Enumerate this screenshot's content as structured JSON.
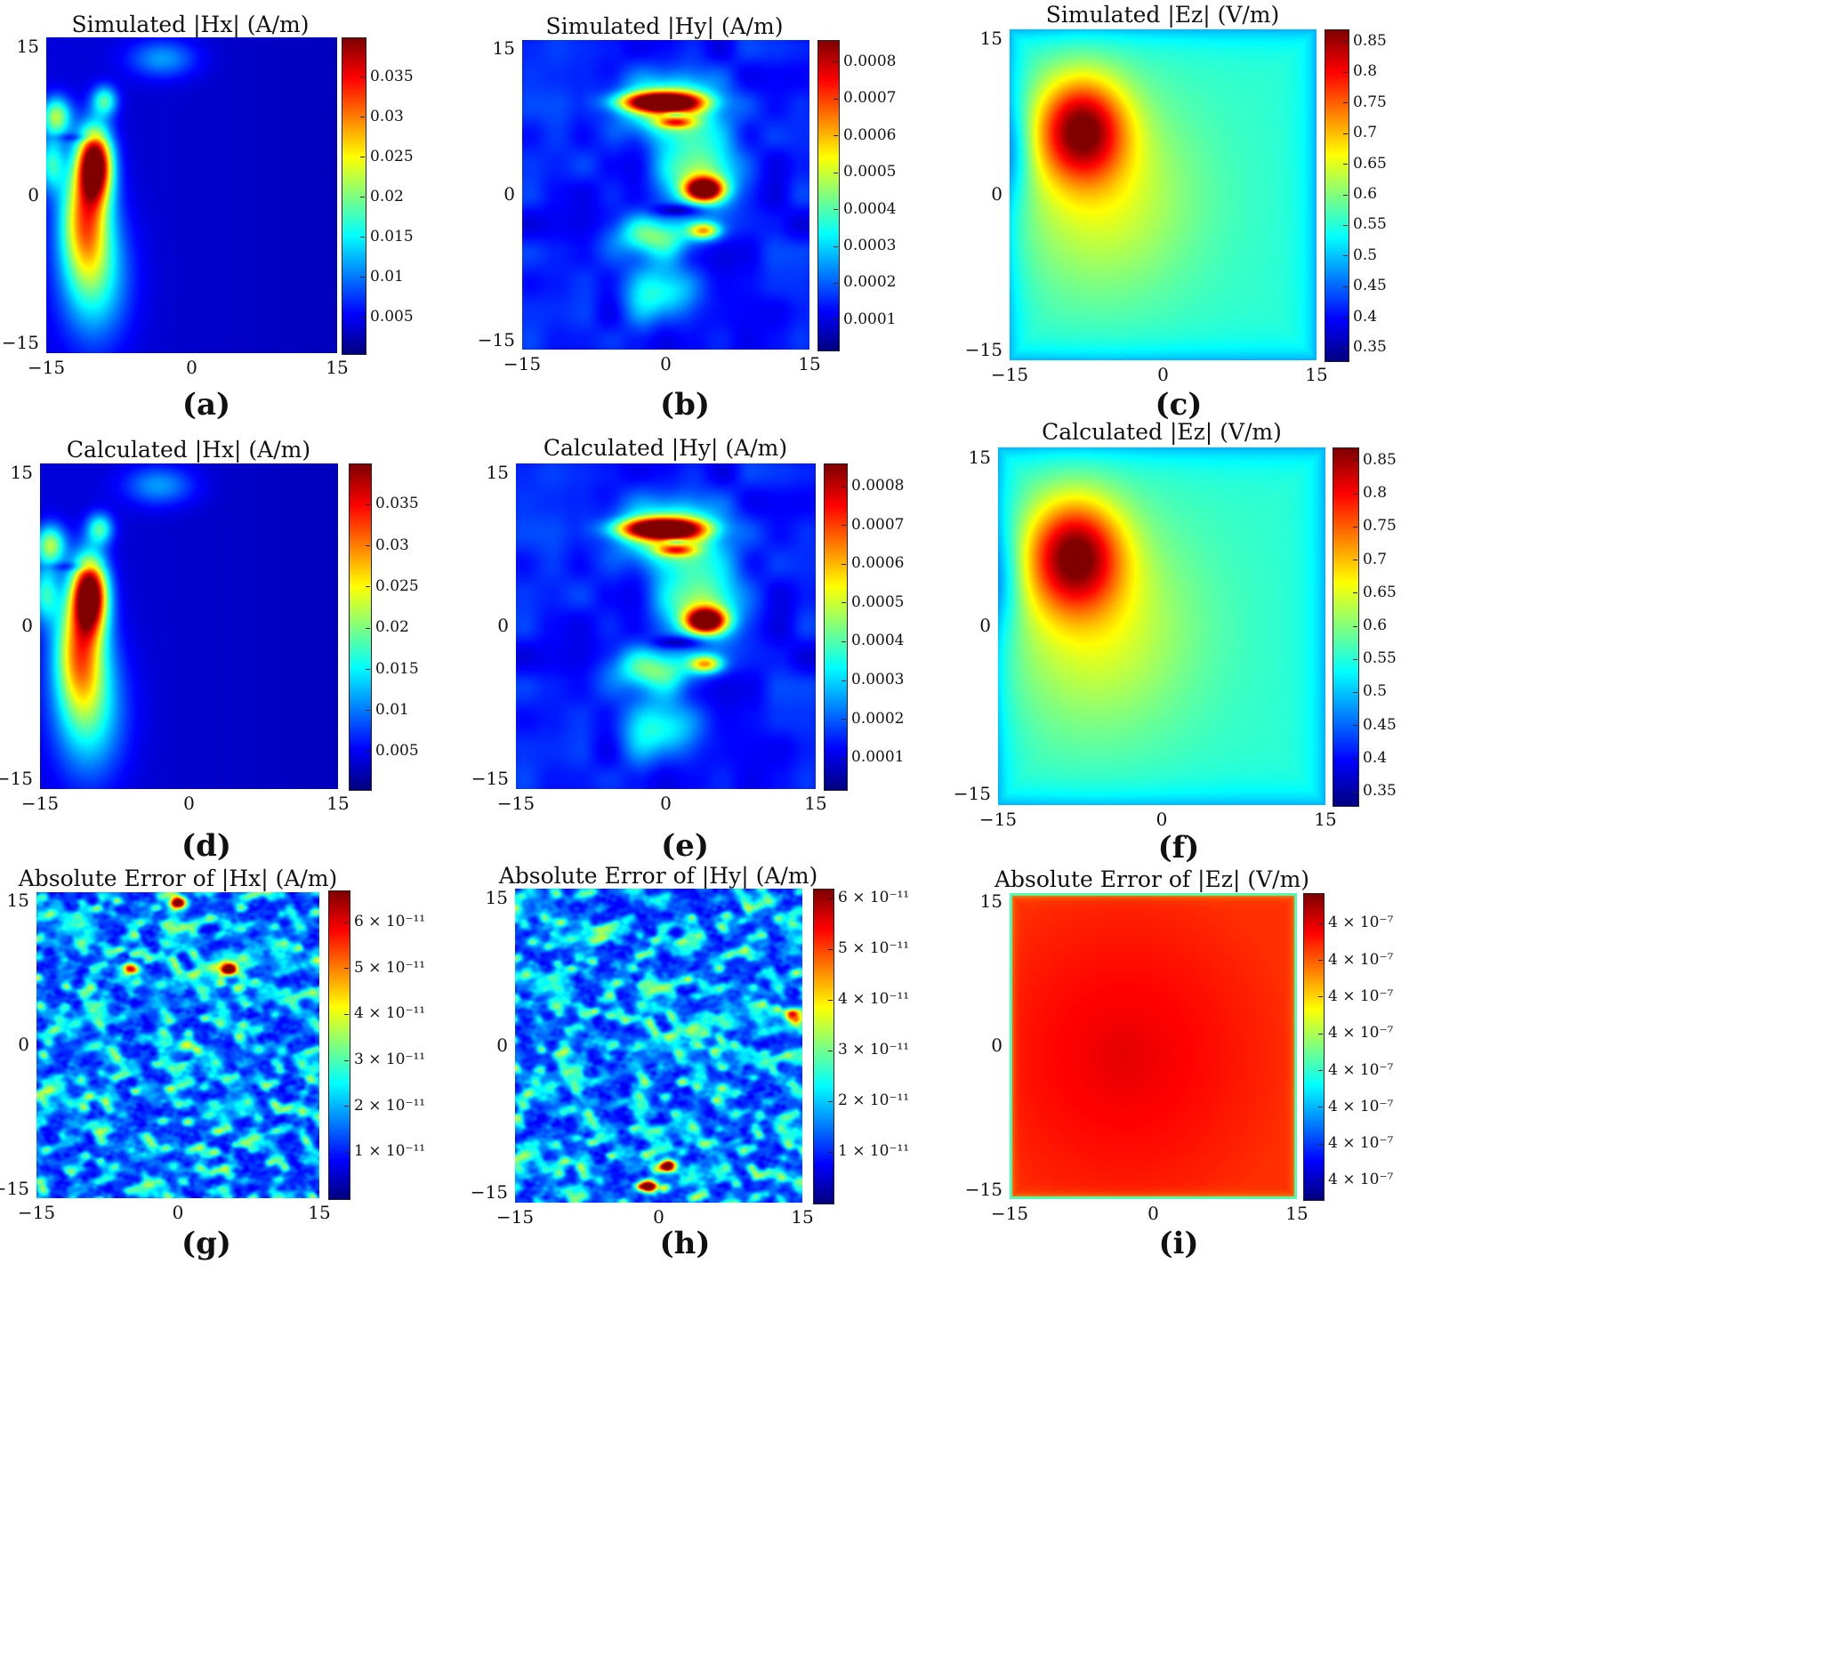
{
  "colormap": "jet",
  "chart_data": [
    {
      "type": "heatmap",
      "panel": "(a)",
      "title": "Simulated |Hx| (A/m)",
      "xticks": [
        "−15",
        "0",
        "15"
      ],
      "yticks": [
        "15",
        "0",
        "−15"
      ],
      "xlim": [
        -15,
        15
      ],
      "ylim": [
        -15,
        15
      ],
      "colorbar": {
        "range": [
          0.0005,
          0.04
        ],
        "ticks": [
          "0.035",
          "0.03",
          "0.025",
          "0.02",
          "0.015",
          "0.01",
          "0.005"
        ],
        "values": [
          0.035,
          0.03,
          0.025,
          0.02,
          0.015,
          0.01,
          0.005
        ]
      },
      "field": "hx",
      "hot_spots": [
        {
          "x": -10,
          "y": 3,
          "value": 0.04
        },
        {
          "x": -14,
          "y": 7,
          "value": 0.02
        }
      ]
    },
    {
      "type": "heatmap",
      "panel": "(b)",
      "title": "Simulated |Hy| (A/m)",
      "xticks": [
        "−15",
        "0",
        "15"
      ],
      "yticks": [
        "15",
        "0",
        "−15"
      ],
      "xlim": [
        -15,
        15
      ],
      "ylim": [
        -15,
        15
      ],
      "colorbar": {
        "range": [
          2e-05,
          0.00086
        ],
        "ticks": [
          "0.0008",
          "0.0007",
          "0.0006",
          "0.0005",
          "0.0004",
          "0.0003",
          "0.0002",
          "0.0001"
        ],
        "values": [
          0.0008,
          0.0007,
          0.0006,
          0.0005,
          0.0004,
          0.0003,
          0.0002,
          0.0001
        ]
      },
      "field": "hy",
      "hot_spots": [
        {
          "x": -1,
          "y": 9,
          "value": 0.00085
        },
        {
          "x": 4,
          "y": 0.5,
          "value": 0.00083
        }
      ]
    },
    {
      "type": "heatmap",
      "panel": "(c)",
      "title": "Simulated |Ez| (V/m)",
      "xticks": [
        "−15",
        "0",
        "15"
      ],
      "yticks": [
        "15",
        "0",
        "−15"
      ],
      "xlim": [
        -15,
        15
      ],
      "ylim": [
        -15,
        15
      ],
      "colorbar": {
        "range": [
          0.33,
          0.87
        ],
        "ticks": [
          "0.85",
          "0.8",
          "0.75",
          "0.7",
          "0.65",
          "0.6",
          "0.55",
          "0.5",
          "0.45",
          "0.4",
          "0.35"
        ],
        "values": [
          0.85,
          0.8,
          0.75,
          0.7,
          0.65,
          0.6,
          0.55,
          0.5,
          0.45,
          0.4,
          0.35
        ]
      },
      "field": "ez",
      "hot_spots": [
        {
          "x": -8,
          "y": 7,
          "value": 0.86
        }
      ]
    },
    {
      "type": "heatmap",
      "panel": "(d)",
      "title": "Calculated |Hx| (A/m)",
      "xticks": [
        "−15",
        "0",
        "15"
      ],
      "yticks": [
        "15",
        "0",
        "−15"
      ],
      "xlim": [
        -15,
        15
      ],
      "ylim": [
        -15,
        15
      ],
      "colorbar": {
        "range": [
          0.0005,
          0.04
        ],
        "ticks": [
          "0.035",
          "0.03",
          "0.025",
          "0.02",
          "0.015",
          "0.01",
          "0.005"
        ],
        "values": [
          0.035,
          0.03,
          0.025,
          0.02,
          0.015,
          0.01,
          0.005
        ]
      },
      "field": "hx",
      "hot_spots": [
        {
          "x": -10,
          "y": 3,
          "value": 0.04
        },
        {
          "x": -14,
          "y": 7,
          "value": 0.02
        }
      ]
    },
    {
      "type": "heatmap",
      "panel": "(e)",
      "title": "Calculated |Hy| (A/m)",
      "xticks": [
        "−15",
        "0",
        "15"
      ],
      "yticks": [
        "15",
        "0",
        "−15"
      ],
      "xlim": [
        -15,
        15
      ],
      "ylim": [
        -15,
        15
      ],
      "colorbar": {
        "range": [
          2e-05,
          0.00086
        ],
        "ticks": [
          "0.0008",
          "0.0007",
          "0.0006",
          "0.0005",
          "0.0004",
          "0.0003",
          "0.0002",
          "0.0001"
        ],
        "values": [
          0.0008,
          0.0007,
          0.0006,
          0.0005,
          0.0004,
          0.0003,
          0.0002,
          0.0001
        ]
      },
      "field": "hy",
      "hot_spots": [
        {
          "x": -1,
          "y": 9,
          "value": 0.00085
        },
        {
          "x": 4,
          "y": 0.5,
          "value": 0.00083
        }
      ]
    },
    {
      "type": "heatmap",
      "panel": "(f)",
      "title": "Calculated |Ez| (V/m)",
      "xticks": [
        "−15",
        "0",
        "15"
      ],
      "yticks": [
        "15",
        "0",
        "−15"
      ],
      "xlim": [
        -15,
        15
      ],
      "ylim": [
        -15,
        15
      ],
      "colorbar": {
        "range": [
          0.33,
          0.87
        ],
        "ticks": [
          "0.85",
          "0.8",
          "0.75",
          "0.7",
          "0.65",
          "0.6",
          "0.55",
          "0.5",
          "0.45",
          "0.4",
          "0.35"
        ],
        "values": [
          0.85,
          0.8,
          0.75,
          0.7,
          0.65,
          0.6,
          0.55,
          0.5,
          0.45,
          0.4,
          0.35
        ]
      },
      "field": "ez",
      "hot_spots": [
        {
          "x": -8,
          "y": 7,
          "value": 0.86
        }
      ]
    },
    {
      "type": "heatmap",
      "panel": "(g)",
      "title": "Absolute Error of |Hx| (A/m)",
      "xticks": [
        "−15",
        "0",
        "15"
      ],
      "yticks": [
        "15",
        "0",
        "−15"
      ],
      "xlim": [
        -15,
        15
      ],
      "ylim": [
        -15,
        15
      ],
      "colorbar": {
        "range": [
          0,
          6.7e-11
        ],
        "ticks": [
          "6 × 10⁻¹¹",
          "5 × 10⁻¹¹",
          "4 × 10⁻¹¹",
          "3 × 10⁻¹¹",
          "2 × 10⁻¹¹",
          "1 × 10⁻¹¹"
        ],
        "values": [
          6e-11,
          5e-11,
          4e-11,
          3e-11,
          2e-11,
          1e-11
        ]
      },
      "field": "noise",
      "hot_spots": [
        {
          "x": 0,
          "y": 14,
          "value": 6.5e-11
        },
        {
          "x": -5,
          "y": 7.5,
          "value": 5e-11
        },
        {
          "x": 5.5,
          "y": 7.5,
          "value": 5.5e-11
        },
        {
          "x": 1,
          "y": 0,
          "value": 3e-11
        }
      ]
    },
    {
      "type": "heatmap",
      "panel": "(h)",
      "title": "Absolute Error of |Hy| (A/m)",
      "xticks": [
        "−15",
        "0",
        "15"
      ],
      "yticks": [
        "15",
        "0",
        "−15"
      ],
      "xlim": [
        -15,
        15
      ],
      "ylim": [
        -15,
        15
      ],
      "colorbar": {
        "range": [
          0,
          6.2e-11
        ],
        "ticks": [
          "6 × 10⁻¹¹",
          "5 × 10⁻¹¹",
          "4 × 10⁻¹¹",
          "3 × 10⁻¹¹",
          "2 × 10⁻¹¹",
          "1 × 10⁻¹¹"
        ],
        "values": [
          6e-11,
          5e-11,
          4e-11,
          3e-11,
          2e-11,
          1e-11
        ]
      },
      "field": "noise",
      "hot_spots": [
        {
          "x": -1,
          "y": -13.5,
          "value": 6e-11
        },
        {
          "x": 1,
          "y": -11.5,
          "value": 5.5e-11
        },
        {
          "x": 14,
          "y": 3,
          "value": 4e-11
        }
      ]
    },
    {
      "type": "heatmap",
      "panel": "(i)",
      "title": "Absolute Error of |Ez| (V/m)",
      "xticks": [
        "−15",
        "0",
        "15"
      ],
      "yticks": [
        "15",
        "0",
        "−15"
      ],
      "xlim": [
        -15,
        15
      ],
      "ylim": [
        -15,
        15
      ],
      "colorbar": {
        "range": [
          0,
          1
        ],
        "ticks": [
          "4 × 10⁻⁷",
          "4 × 10⁻⁷",
          "4 × 10⁻⁷",
          "4 × 10⁻⁷",
          "4 × 10⁻⁷",
          "4 × 10⁻⁷",
          "4 × 10⁻⁷",
          "4 × 10⁻⁷"
        ],
        "values": [
          0.9,
          0.78,
          0.66,
          0.54,
          0.42,
          0.3,
          0.18,
          0.06
        ]
      },
      "field": "box",
      "hot_spots": [
        {
          "x": -3,
          "y": -1,
          "value": 1
        }
      ]
    }
  ]
}
